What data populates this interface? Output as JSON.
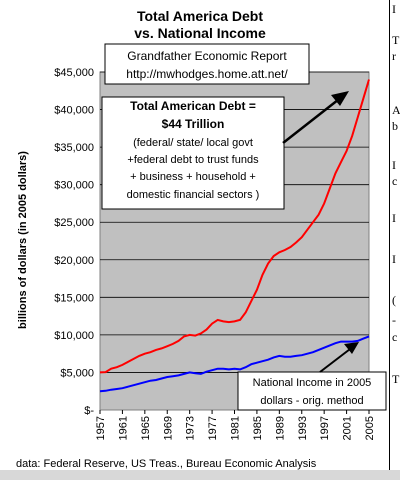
{
  "chart_data": {
    "type": "line",
    "title_line1": "Total America Debt",
    "title_line2": "vs. National Income",
    "subtitle_line1": "Grandfather Economic Report",
    "subtitle_line2": "http://mwhodges.home.att.net/",
    "ylabel": "billions of dollars (in 2005 dollars)",
    "ylim": [
      0,
      45000
    ],
    "y_ticks": [
      {
        "value": 45000,
        "label": "$45,000"
      },
      {
        "value": 40000,
        "label": "$40,000"
      },
      {
        "value": 35000,
        "label": "$35,000"
      },
      {
        "value": 30000,
        "label": "$30,000"
      },
      {
        "value": 25000,
        "label": "$25,000"
      },
      {
        "value": 20000,
        "label": "$20,000"
      },
      {
        "value": 15000,
        "label": "$15,000"
      },
      {
        "value": 10000,
        "label": "$10,000"
      },
      {
        "value": 5000,
        "label": "$5,000"
      },
      {
        "value": 0,
        "label": "$-"
      }
    ],
    "x_ticks": [
      "1957",
      "1961",
      "1965",
      "1969",
      "1973",
      "1977",
      "1981",
      "1985",
      "1989",
      "1993",
      "1997",
      "2001",
      "2005"
    ],
    "grid": true,
    "series": [
      {
        "color": "#ff0000",
        "x": [
          1957,
          1958,
          1959,
          1960,
          1961,
          1962,
          1963,
          1964,
          1965,
          1966,
          1967,
          1968,
          1969,
          1970,
          1971,
          1972,
          1973,
          1974,
          1975,
          1976,
          1977,
          1978,
          1979,
          1980,
          1981,
          1982,
          1983,
          1984,
          1985,
          1986,
          1987,
          1988,
          1989,
          1990,
          1991,
          1992,
          1993,
          1994,
          1995,
          1996,
          1997,
          1998,
          1999,
          2000,
          2001,
          2002,
          2003,
          2004,
          2005
        ],
        "y": [
          5000,
          5050,
          5500,
          5700,
          6000,
          6400,
          6800,
          7200,
          7500,
          7700,
          8000,
          8200,
          8500,
          8800,
          9200,
          9800,
          10000,
          9900,
          10200,
          10700,
          11500,
          12000,
          11800,
          11700,
          11800,
          12000,
          13000,
          14500,
          16000,
          18000,
          19500,
          20500,
          21000,
          21300,
          21700,
          22300,
          23000,
          24000,
          25000,
          26000,
          27500,
          29500,
          31500,
          33000,
          34500,
          36500,
          39000,
          41500,
          44000
        ]
      },
      {
        "color": "#0000ff",
        "x": [
          1957,
          1958,
          1959,
          1960,
          1961,
          1962,
          1963,
          1964,
          1965,
          1966,
          1967,
          1968,
          1969,
          1970,
          1971,
          1972,
          1973,
          1974,
          1975,
          1976,
          1977,
          1978,
          1979,
          1980,
          1981,
          1982,
          1983,
          1984,
          1985,
          1986,
          1987,
          1988,
          1989,
          1990,
          1991,
          1992,
          1993,
          1994,
          1995,
          1996,
          1997,
          1998,
          1999,
          2000,
          2001,
          2002,
          2003,
          2004,
          2005
        ],
        "y": [
          2500,
          2550,
          2700,
          2800,
          2900,
          3100,
          3300,
          3500,
          3700,
          3900,
          4000,
          4200,
          4400,
          4500,
          4600,
          4800,
          5000,
          4900,
          4800,
          5100,
          5300,
          5500,
          5500,
          5400,
          5500,
          5400,
          5700,
          6100,
          6300,
          6500,
          6700,
          7000,
          7200,
          7100,
          7100,
          7200,
          7300,
          7500,
          7700,
          8000,
          8300,
          8600,
          8900,
          9100,
          9100,
          9100,
          9200,
          9500,
          9800
        ]
      }
    ],
    "annotations": {
      "debt": [
        "Total American Debt =",
        "$44 Trillion",
        "(federal/ state/ local govt",
        "+federal debt to trust funds",
        "+ business + household +",
        "domestic financial sectors )"
      ],
      "income": [
        "National Income in 2005",
        "dollars - orig. method"
      ]
    },
    "source": "data: Federal Reserve, US Treas., Bureau Economic Analysis"
  },
  "side_text": [
    "I",
    "T",
    "r",
    "A",
    "b",
    "I",
    "c",
    "I",
    "I",
    "(",
    "-",
    "c",
    "T"
  ],
  "colors": {
    "plot_background": "#c0c0c0",
    "debt_line": "#ff0000",
    "income_line": "#0000ff"
  }
}
